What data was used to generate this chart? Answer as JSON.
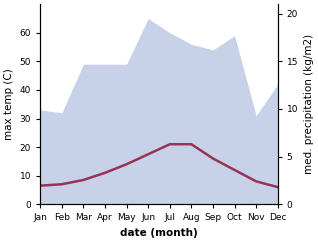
{
  "months": [
    "Jan",
    "Feb",
    "Mar",
    "Apr",
    "May",
    "Jun",
    "Jul",
    "Aug",
    "Sep",
    "Oct",
    "Nov",
    "Dec"
  ],
  "month_indices": [
    0,
    1,
    2,
    3,
    4,
    5,
    6,
    7,
    8,
    9,
    10,
    11
  ],
  "temperature": [
    6.5,
    7.0,
    8.5,
    11.0,
    14.0,
    17.5,
    21.0,
    21.0,
    16.0,
    12.0,
    8.0,
    6.0
  ],
  "precipitation": [
    33,
    32,
    49,
    49,
    49,
    65,
    60,
    56,
    54,
    59,
    31,
    42
  ],
  "temp_color": "#993355",
  "precip_color": "#aabbdd",
  "precip_fill_alpha": 0.65,
  "temp_linewidth": 1.8,
  "xlabel": "date (month)",
  "ylabel_left": "max temp (C)",
  "ylabel_right": "med. precipitation (kg/m2)",
  "ylim_left": [
    0,
    70
  ],
  "ylim_right": [
    0,
    70
  ],
  "yticks_left": [
    0,
    10,
    20,
    30,
    40,
    50,
    60
  ],
  "yticks_right_vals": [
    0,
    5,
    10,
    15,
    20
  ],
  "yticks_right_pos": [
    0,
    16.67,
    33.33,
    50.0,
    66.67
  ],
  "background_color": "#ffffff",
  "axis_fontsize": 7.5,
  "tick_fontsize": 6.5
}
